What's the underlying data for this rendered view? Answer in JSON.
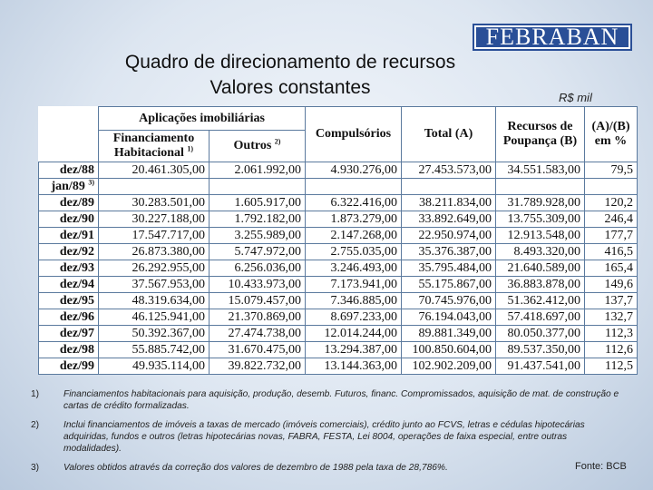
{
  "logo": "FEBRABAN",
  "title_line1": "Quadro de direcionamento de recursos",
  "title_line2": "Valores constantes",
  "unit": "R$ mil",
  "headers": {
    "aplicacoes": "Aplicações imobiliárias",
    "financiamento": "Financiamento Habitacional",
    "financiamento_sup": "1)",
    "outros": "Outros",
    "outros_sup": "2)",
    "compulsorios": "Compulsórios",
    "total": "Total (A)",
    "recursos": "Recursos de Poupança (B)",
    "ratio": "(A)/(B) em %"
  },
  "rows": [
    {
      "year": "dez/88",
      "sup": "",
      "fin": "20.461.305,00",
      "outros": "2.061.992,00",
      "comp": "4.930.276,00",
      "total": "27.453.573,00",
      "poup": "34.551.583,00",
      "ratio": "79,5"
    },
    {
      "year": "jan/89",
      "sup": "3)",
      "fin": "",
      "outros": "",
      "comp": "",
      "total": "",
      "poup": "",
      "ratio": ""
    },
    {
      "year": "dez/89",
      "sup": "",
      "fin": "30.283.501,00",
      "outros": "1.605.917,00",
      "comp": "6.322.416,00",
      "total": "38.211.834,00",
      "poup": "31.789.928,00",
      "ratio": "120,2"
    },
    {
      "year": "dez/90",
      "sup": "",
      "fin": "30.227.188,00",
      "outros": "1.792.182,00",
      "comp": "1.873.279,00",
      "total": "33.892.649,00",
      "poup": "13.755.309,00",
      "ratio": "246,4"
    },
    {
      "year": "dez/91",
      "sup": "",
      "fin": "17.547.717,00",
      "outros": "3.255.989,00",
      "comp": "2.147.268,00",
      "total": "22.950.974,00",
      "poup": "12.913.548,00",
      "ratio": "177,7"
    },
    {
      "year": "dez/92",
      "sup": "",
      "fin": "26.873.380,00",
      "outros": "5.747.972,00",
      "comp": "2.755.035,00",
      "total": "35.376.387,00",
      "poup": "8.493.320,00",
      "ratio": "416,5"
    },
    {
      "year": "dez/93",
      "sup": "",
      "fin": "26.292.955,00",
      "outros": "6.256.036,00",
      "comp": "3.246.493,00",
      "total": "35.795.484,00",
      "poup": "21.640.589,00",
      "ratio": "165,4"
    },
    {
      "year": "dez/94",
      "sup": "",
      "fin": "37.567.953,00",
      "outros": "10.433.973,00",
      "comp": "7.173.941,00",
      "total": "55.175.867,00",
      "poup": "36.883.878,00",
      "ratio": "149,6"
    },
    {
      "year": "dez/95",
      "sup": "",
      "fin": "48.319.634,00",
      "outros": "15.079.457,00",
      "comp": "7.346.885,00",
      "total": "70.745.976,00",
      "poup": "51.362.412,00",
      "ratio": "137,7"
    },
    {
      "year": "dez/96",
      "sup": "",
      "fin": "46.125.941,00",
      "outros": "21.370.869,00",
      "comp": "8.697.233,00",
      "total": "76.194.043,00",
      "poup": "57.418.697,00",
      "ratio": "132,7"
    },
    {
      "year": "dez/97",
      "sup": "",
      "fin": "50.392.367,00",
      "outros": "27.474.738,00",
      "comp": "12.014.244,00",
      "total": "89.881.349,00",
      "poup": "80.050.377,00",
      "ratio": "112,3"
    },
    {
      "year": "dez/98",
      "sup": "",
      "fin": "55.885.742,00",
      "outros": "31.670.475,00",
      "comp": "13.294.387,00",
      "total": "100.850.604,00",
      "poup": "89.537.350,00",
      "ratio": "112,6"
    },
    {
      "year": "dez/99",
      "sup": "",
      "fin": "49.935.114,00",
      "outros": "39.822.732,00",
      "comp": "13.144.363,00",
      "total": "102.902.209,00",
      "poup": "91.437.541,00",
      "ratio": "112,5"
    }
  ],
  "notes": [
    {
      "n": "1)",
      "text": "Financiamentos habitacionais para aquisição, produção, desemb. Futuros, financ. Compromissados, aquisição de mat. de construção e cartas de crédito formalizadas."
    },
    {
      "n": "2)",
      "text": "Inclui financiamentos de imóveis a taxas de mercado (imóveis comerciais), crédito junto ao FCVS, letras e cédulas hipotecárias adquiridas, fundos e outros (letras hipotecárias novas, FABRA, FESTA, Lei 8004, operações de faixa especial, entre outras modalidades)."
    },
    {
      "n": "3)",
      "text": "Valores obtidos através da correção dos valores de dezembro de 1988 pela taxa de 28,786%."
    }
  ],
  "source": "Fonte: BCB"
}
